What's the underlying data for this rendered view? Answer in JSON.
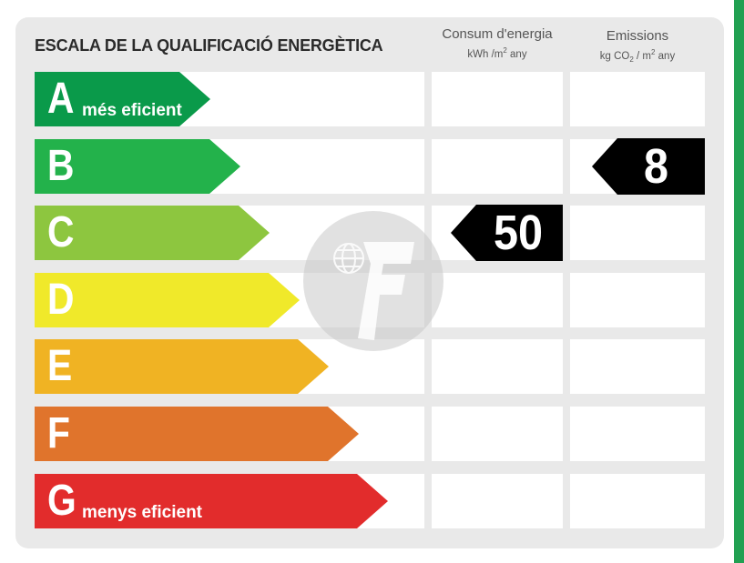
{
  "title": "ESCALA DE LA QUALIFICACIÓ ENERGÈTICA",
  "columns": {
    "consumption": {
      "label": "Consum d'energia",
      "unit_prefix": "kWh /m",
      "unit_exp": "2",
      "unit_suffix": " any"
    },
    "emissions": {
      "label": "Emissions",
      "unit_prefix": "kg CO",
      "unit_sub": "2",
      "unit_mid": " / m",
      "unit_exp": "2",
      "unit_suffix": " any"
    }
  },
  "ratings": [
    {
      "letter": "A",
      "desc": "més eficient",
      "color": "#0a9a4a"
    },
    {
      "letter": "B",
      "desc": "",
      "color": "#23b24b"
    },
    {
      "letter": "C",
      "desc": "",
      "color": "#8dc63f"
    },
    {
      "letter": "D",
      "desc": "",
      "color": "#f0e92a"
    },
    {
      "letter": "E",
      "desc": "",
      "color": "#f0b323"
    },
    {
      "letter": "F",
      "desc": "",
      "color": "#e0742c"
    },
    {
      "letter": "G",
      "desc": "menys eficient",
      "color": "#e22c2c"
    }
  ],
  "consumption_value": "50",
  "consumption_rating": "C",
  "emissions_value": "8",
  "emissions_rating": "B",
  "watermark_icon": "logo-f-globe"
}
